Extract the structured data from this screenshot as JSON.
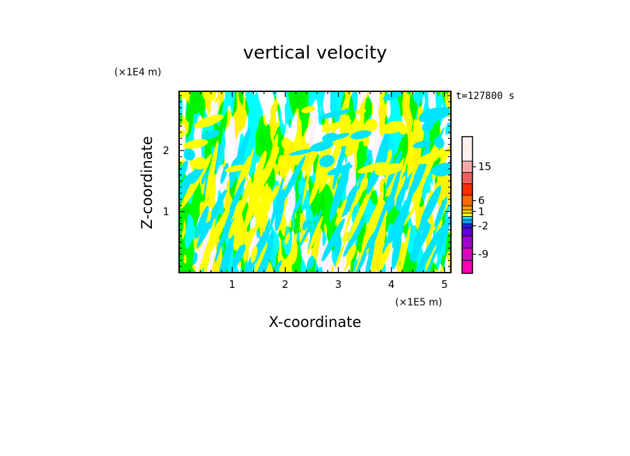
{
  "chart_data": {
    "type": "heatmap",
    "title": "vertical velocity",
    "xlabel": "X-coordinate",
    "ylabel": "Z-coordinate",
    "x_unit": "(×1E5 m)",
    "y_unit": "(×1E4 m)",
    "time_label": "t=127800 s",
    "xlim": [
      0,
      5.12
    ],
    "ylim": [
      0,
      2.97
    ],
    "x_ticks": [
      "1",
      "2",
      "3",
      "4",
      "5"
    ],
    "x_tick_values": [
      1,
      2,
      3,
      4,
      5
    ],
    "y_ticks": [
      "1",
      "2"
    ],
    "y_tick_values": [
      1,
      2
    ],
    "field_colors": {
      "positive": "#ffff00",
      "negative": "#00e5ff"
    },
    "colorbar": {
      "levels": [
        {
          "color": "#ff00b4"
        },
        {
          "color": "#e000c0"
        },
        {
          "color": "#a000d0"
        },
        {
          "color": "#6000d8"
        },
        {
          "color": "#2020e0"
        },
        {
          "color": "#00a0ff"
        },
        {
          "color": "#00e5ff"
        },
        {
          "color": "#ffff00"
        },
        {
          "color": "#ffd400"
        },
        {
          "color": "#ff9a00"
        },
        {
          "color": "#ff6a00"
        },
        {
          "color": "#ff2a00"
        },
        {
          "color": "#f06060"
        },
        {
          "color": "#f8a8a8"
        },
        {
          "color": "#fff0ee"
        }
      ],
      "labels": [
        {
          "text": "-9",
          "value": -9
        },
        {
          "text": "-2",
          "value": -2
        },
        {
          "text": "1",
          "value": 1
        },
        {
          "text": "6",
          "value": 6
        },
        {
          "text": "15",
          "value": 15
        }
      ]
    }
  }
}
